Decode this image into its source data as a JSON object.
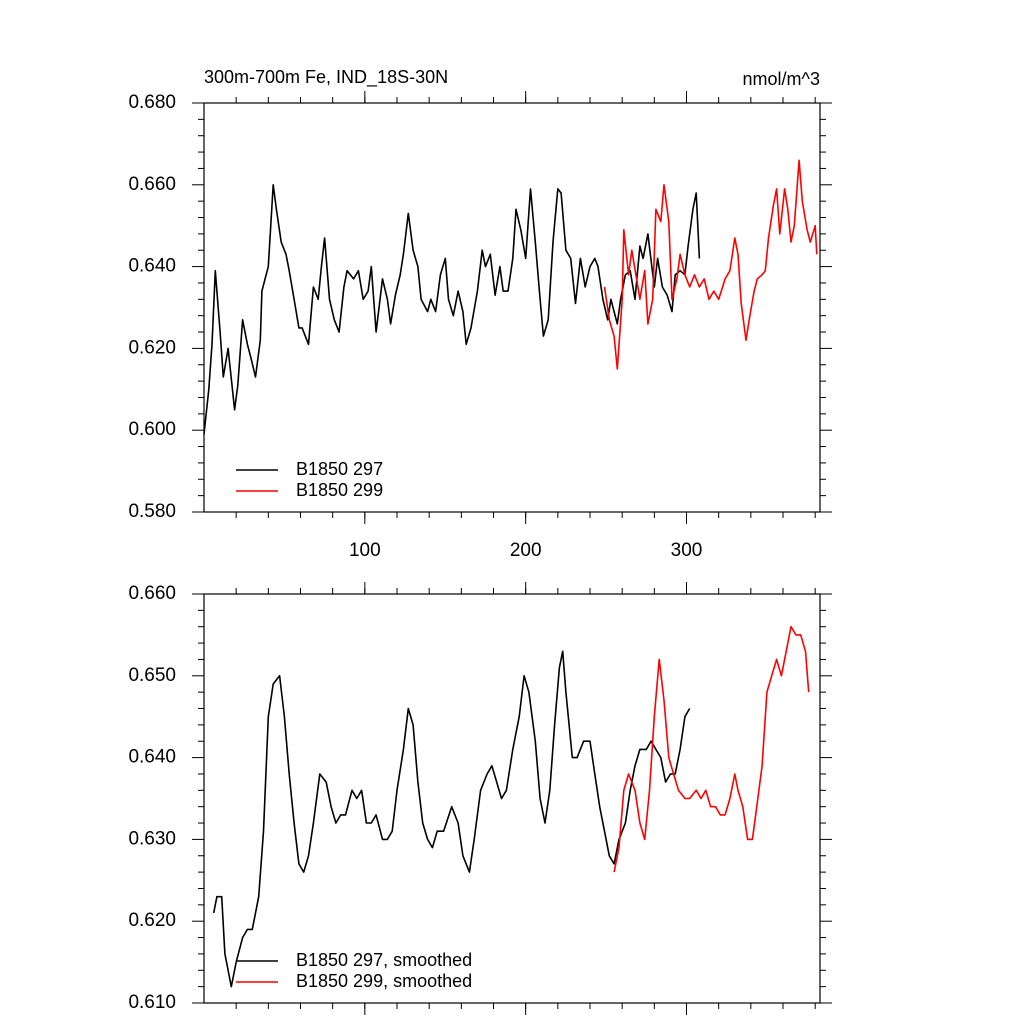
{
  "chart_data": [
    {
      "type": "line",
      "title": "300m-700m Fe, IND_18S-30N",
      "units": "nmol/m^3",
      "xlim": [
        0,
        383
      ],
      "xticks": [
        100,
        200,
        300
      ],
      "xtick_labels": true,
      "ylim": [
        0.58,
        0.68
      ],
      "yticks": [
        {
          "value": 0.58,
          "label": "0.580"
        },
        {
          "value": 0.6,
          "label": "0.600"
        },
        {
          "value": 0.62,
          "label": "0.620"
        },
        {
          "value": 0.64,
          "label": "0.640"
        },
        {
          "value": 0.66,
          "label": "0.660"
        },
        {
          "value": 0.68,
          "label": "0.680"
        }
      ],
      "legend": "lower left",
      "series": [
        {
          "name": "B1850 297",
          "color": "#000000",
          "x": [
            0,
            3,
            5,
            7,
            10,
            12,
            15,
            19,
            21,
            24,
            27,
            29,
            32,
            35,
            36,
            40,
            43,
            45,
            48,
            51,
            53,
            56,
            59,
            61,
            65,
            68,
            71,
            73,
            75,
            78,
            81,
            84,
            87,
            89,
            93,
            96,
            99,
            102,
            104,
            107,
            111,
            114,
            116,
            119,
            122,
            124,
            127,
            130,
            133,
            135,
            139,
            141,
            144,
            147,
            150,
            152,
            155,
            158,
            161,
            163,
            166,
            170,
            173,
            175,
            178,
            181,
            184,
            186,
            189,
            192,
            194,
            197,
            200,
            203,
            206,
            209,
            211,
            214,
            217,
            220,
            222,
            225,
            228,
            231,
            234,
            237,
            240,
            243,
            245,
            248,
            251,
            253,
            257,
            259,
            262,
            265,
            268,
            271,
            273,
            276,
            280,
            282,
            285,
            288,
            291,
            293,
            296,
            299,
            301,
            304,
            306,
            308
          ],
          "values": [
            0.599,
            0.61,
            0.621,
            0.639,
            0.624,
            0.613,
            0.62,
            0.605,
            0.611,
            0.627,
            0.621,
            0.618,
            0.613,
            0.622,
            0.634,
            0.64,
            0.66,
            0.654,
            0.646,
            0.643,
            0.639,
            0.632,
            0.625,
            0.625,
            0.621,
            0.635,
            0.632,
            0.64,
            0.647,
            0.632,
            0.627,
            0.624,
            0.635,
            0.639,
            0.637,
            0.639,
            0.632,
            0.634,
            0.64,
            0.624,
            0.637,
            0.632,
            0.626,
            0.633,
            0.638,
            0.643,
            0.653,
            0.644,
            0.64,
            0.632,
            0.629,
            0.632,
            0.629,
            0.638,
            0.642,
            0.632,
            0.628,
            0.634,
            0.629,
            0.621,
            0.625,
            0.634,
            0.644,
            0.64,
            0.643,
            0.633,
            0.64,
            0.634,
            0.634,
            0.642,
            0.654,
            0.649,
            0.642,
            0.659,
            0.646,
            0.632,
            0.623,
            0.627,
            0.646,
            0.659,
            0.658,
            0.644,
            0.642,
            0.631,
            0.642,
            0.635,
            0.64,
            0.642,
            0.64,
            0.632,
            0.627,
            0.632,
            0.626,
            0.632,
            0.638,
            0.639,
            0.632,
            0.645,
            0.642,
            0.648,
            0.635,
            0.642,
            0.635,
            0.633,
            0.629,
            0.638,
            0.639,
            0.638,
            0.645,
            0.654,
            0.658,
            0.642
          ]
        },
        {
          "name": "B1850 299",
          "color": "#ff0000",
          "x": [
            249,
            252,
            255,
            257,
            260,
            261,
            264,
            266,
            269,
            271,
            274,
            276,
            279,
            281,
            284,
            286,
            289,
            291,
            294,
            296,
            299,
            302,
            305,
            308,
            311,
            314,
            317,
            320,
            324,
            327,
            330,
            332,
            334,
            337,
            339,
            342,
            344,
            347,
            349,
            351,
            354,
            356,
            358,
            361,
            363,
            365,
            367,
            370,
            372,
            375,
            377,
            380,
            381
          ],
          "values": [
            0.635,
            0.627,
            0.623,
            0.615,
            0.632,
            0.649,
            0.638,
            0.644,
            0.637,
            0.632,
            0.639,
            0.626,
            0.632,
            0.654,
            0.651,
            0.66,
            0.651,
            0.632,
            0.637,
            0.643,
            0.638,
            0.635,
            0.638,
            0.635,
            0.637,
            0.632,
            0.634,
            0.632,
            0.637,
            0.639,
            0.647,
            0.643,
            0.631,
            0.622,
            0.627,
            0.634,
            0.637,
            0.638,
            0.639,
            0.647,
            0.655,
            0.659,
            0.648,
            0.659,
            0.654,
            0.646,
            0.65,
            0.666,
            0.656,
            0.649,
            0.646,
            0.65,
            0.643
          ]
        }
      ]
    },
    {
      "type": "line",
      "xlim": [
        0,
        383
      ],
      "xticks": [
        100,
        200,
        300
      ],
      "xtick_labels": false,
      "ylim": [
        0.61,
        0.66
      ],
      "yticks": [
        {
          "value": 0.61,
          "label": "0.610"
        },
        {
          "value": 0.62,
          "label": "0.620"
        },
        {
          "value": 0.63,
          "label": "0.630"
        },
        {
          "value": 0.64,
          "label": "0.640"
        },
        {
          "value": 0.65,
          "label": "0.650"
        },
        {
          "value": 0.66,
          "label": "0.660"
        }
      ],
      "legend": "lower left",
      "series": [
        {
          "name": "B1850 297, smoothed",
          "color": "#000000",
          "x": [
            6,
            8,
            11,
            13,
            17,
            20,
            24,
            27,
            30,
            34,
            37,
            40,
            43,
            47,
            50,
            53,
            56,
            59,
            62,
            65,
            68,
            72,
            76,
            79,
            82,
            85,
            88,
            92,
            95,
            98,
            101,
            104,
            107,
            111,
            114,
            117,
            120,
            124,
            127,
            130,
            133,
            136,
            139,
            142,
            145,
            149,
            154,
            158,
            161,
            165,
            168,
            172,
            176,
            179,
            182,
            185,
            188,
            192,
            196,
            199,
            202,
            206,
            209,
            212,
            215,
            218,
            221,
            223,
            225,
            229,
            232,
            236,
            240,
            243,
            246,
            249,
            252,
            255,
            258,
            262,
            265,
            268,
            271,
            275,
            278,
            281,
            284,
            287,
            290,
            293,
            296,
            299,
            302
          ],
          "values": [
            0.621,
            0.623,
            0.623,
            0.616,
            0.612,
            0.615,
            0.618,
            0.619,
            0.619,
            0.623,
            0.631,
            0.645,
            0.649,
            0.65,
            0.645,
            0.638,
            0.632,
            0.627,
            0.626,
            0.628,
            0.632,
            0.638,
            0.637,
            0.634,
            0.632,
            0.633,
            0.633,
            0.636,
            0.635,
            0.636,
            0.632,
            0.632,
            0.633,
            0.63,
            0.63,
            0.631,
            0.636,
            0.641,
            0.646,
            0.644,
            0.637,
            0.632,
            0.63,
            0.629,
            0.631,
            0.631,
            0.634,
            0.632,
            0.628,
            0.626,
            0.63,
            0.636,
            0.638,
            0.639,
            0.637,
            0.635,
            0.636,
            0.641,
            0.645,
            0.65,
            0.648,
            0.642,
            0.635,
            0.632,
            0.636,
            0.644,
            0.651,
            0.653,
            0.648,
            0.64,
            0.64,
            0.642,
            0.642,
            0.638,
            0.634,
            0.631,
            0.628,
            0.627,
            0.63,
            0.632,
            0.636,
            0.639,
            0.641,
            0.641,
            0.642,
            0.641,
            0.64,
            0.637,
            0.638,
            0.638,
            0.641,
            0.645,
            0.646
          ]
        },
        {
          "name": "B1850 299, smoothed",
          "color": "#ff0000",
          "x": [
            255,
            258,
            261,
            264,
            268,
            271,
            274,
            277,
            280,
            283,
            286,
            289,
            292,
            295,
            299,
            302,
            306,
            309,
            312,
            315,
            318,
            321,
            324,
            327,
            330,
            332,
            335,
            338,
            341,
            343,
            347,
            350,
            353,
            356,
            359,
            363,
            365,
            368,
            371,
            374,
            376
          ],
          "values": [
            0.626,
            0.629,
            0.636,
            0.638,
            0.636,
            0.632,
            0.63,
            0.636,
            0.645,
            0.652,
            0.647,
            0.64,
            0.638,
            0.636,
            0.635,
            0.635,
            0.636,
            0.635,
            0.636,
            0.634,
            0.634,
            0.633,
            0.633,
            0.635,
            0.638,
            0.636,
            0.634,
            0.63,
            0.63,
            0.633,
            0.639,
            0.648,
            0.65,
            0.652,
            0.65,
            0.654,
            0.656,
            0.655,
            0.655,
            0.653,
            0.648
          ]
        }
      ]
    }
  ]
}
